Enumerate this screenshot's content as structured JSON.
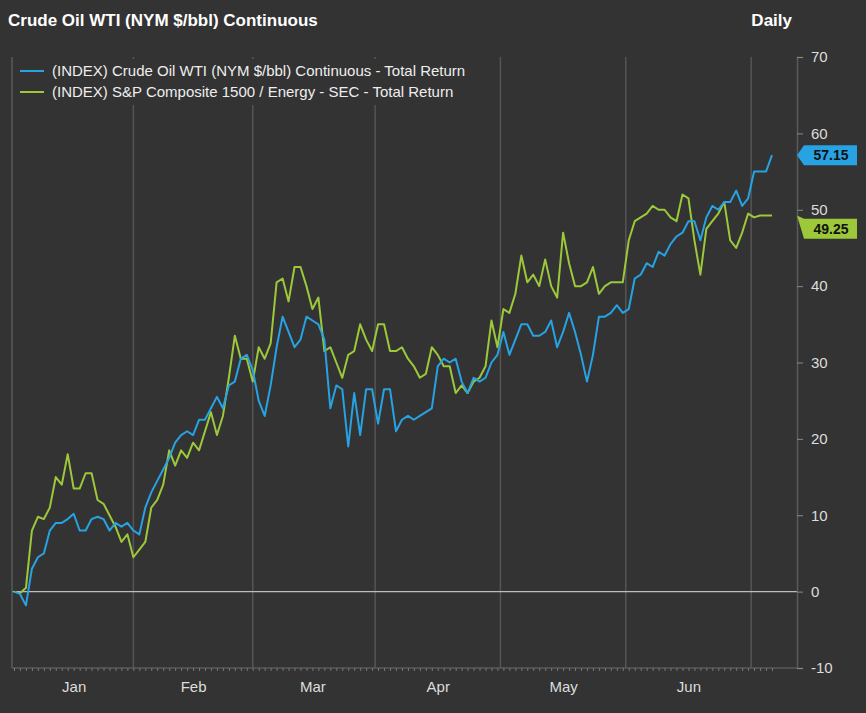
{
  "chart_data": {
    "type": "line",
    "title": "Crude Oil WTI (NYM $/bbl) Continuous",
    "subtitle": "Daily",
    "categories": [
      null,
      null,
      null,
      null,
      null,
      null,
      null,
      null,
      null,
      null,
      "Jan",
      null,
      null,
      null,
      null,
      null,
      null,
      null,
      null,
      null,
      null,
      null,
      null,
      null,
      null,
      null,
      null,
      null,
      null,
      null,
      "Feb",
      null,
      null,
      null,
      null,
      null,
      null,
      null,
      null,
      null,
      null,
      null,
      null,
      null,
      null,
      null,
      null,
      null,
      null,
      null,
      "Mar",
      null,
      null,
      null,
      null,
      null,
      null,
      null,
      null,
      null,
      null,
      null,
      null,
      null,
      null,
      null,
      null,
      null,
      null,
      null,
      null,
      "Apr",
      null,
      null,
      null,
      null,
      null,
      null,
      null,
      null,
      null,
      null,
      null,
      null,
      null,
      null,
      null,
      null,
      null,
      null,
      null,
      null,
      "May",
      null,
      null,
      null,
      null,
      null,
      null,
      null,
      null,
      null,
      null,
      null,
      null,
      null,
      null,
      null,
      null,
      null,
      null,
      null,
      null,
      "Jun",
      null,
      null,
      null,
      null,
      null,
      null,
      null,
      null,
      null,
      null,
      null,
      null,
      null,
      null
    ],
    "series": [
      {
        "name": "(INDEX) Crude Oil WTI (NYM $/bbl) Continuous - Total Return",
        "color": "#27a2e3",
        "values": [
          0,
          -0.3,
          -1.8,
          3,
          4.5,
          5,
          8,
          9,
          9,
          9.5,
          10.2,
          8,
          8,
          9.5,
          9.8,
          9.5,
          8,
          9,
          8.5,
          9,
          8,
          7.5,
          11,
          13,
          14.5,
          16,
          17.5,
          19.5,
          20.5,
          21,
          20.5,
          22.5,
          22.5,
          24,
          25.5,
          24,
          27,
          27.5,
          30.5,
          31,
          29,
          25,
          23,
          27,
          32,
          36,
          34,
          32,
          33,
          36,
          35.5,
          35,
          33,
          24,
          27,
          26.5,
          19,
          26,
          20.5,
          26.5,
          26.5,
          22,
          26.5,
          26.5,
          21,
          22.5,
          23,
          22.5,
          23,
          23.5,
          24,
          29.5,
          30.5,
          30,
          30.5,
          27.5,
          26,
          28,
          27.5,
          28,
          30,
          31,
          34,
          31,
          33,
          35,
          35,
          33.5,
          33.5,
          34,
          35.5,
          32,
          34,
          36.5,
          34,
          31,
          27.5,
          31,
          36,
          36,
          36.5,
          37.5,
          36.5,
          37,
          41,
          41.5,
          43,
          42.5,
          44.5,
          44,
          45.5,
          46.5,
          47,
          48.5,
          48.5,
          46,
          49,
          50.5,
          50,
          51,
          51,
          52.5,
          50.5,
          51.5,
          55,
          55,
          55,
          57.15
        ],
        "value_labels": [
          null,
          null,
          null,
          null,
          null,
          null,
          null,
          null,
          null,
          null,
          null,
          null,
          null,
          null,
          null,
          null,
          null,
          null,
          null,
          null,
          null,
          null,
          null,
          null,
          null,
          null,
          null,
          null,
          null,
          null,
          null,
          null,
          null,
          null,
          null,
          null,
          null,
          null,
          null,
          null,
          null,
          null,
          null,
          null,
          null,
          null,
          null,
          null,
          null,
          null,
          null,
          null,
          null,
          null,
          null,
          null,
          null,
          null,
          null,
          null,
          null,
          null,
          null,
          null,
          null,
          null,
          null,
          null,
          null,
          null,
          null,
          null,
          null,
          null,
          null,
          null,
          null,
          null,
          null,
          null,
          null,
          null,
          null,
          null,
          null,
          null,
          null,
          null,
          null,
          null,
          null,
          null,
          null,
          null,
          null,
          null,
          null,
          null,
          null,
          null,
          null,
          null,
          null,
          null,
          null,
          null,
          null,
          null,
          null,
          null,
          null,
          null,
          null,
          null,
          null,
          null,
          null,
          null,
          null,
          null,
          null,
          null,
          null,
          null,
          null,
          null,
          null,
          "57.15"
        ]
      },
      {
        "name": "(INDEX) S&P Composite 1500 / Energy - SEC - Total Return",
        "color": "#9cc83a",
        "values": [
          0,
          -0.2,
          0.5,
          8,
          9.8,
          9.5,
          11,
          15,
          14,
          18,
          13.5,
          13.5,
          15.5,
          15.5,
          12,
          11.5,
          10,
          8.5,
          6.5,
          7.5,
          4.5,
          5.5,
          6.5,
          11,
          12,
          14,
          18.5,
          16.5,
          18.5,
          17.5,
          19.5,
          18.5,
          21,
          23.5,
          20.5,
          23,
          28,
          33.5,
          30.5,
          30.5,
          27.5,
          32,
          30.5,
          32.5,
          40.5,
          41,
          38,
          42.5,
          42.5,
          40,
          37,
          38.5,
          31.5,
          32,
          30,
          28,
          31,
          31.5,
          35,
          33,
          31.5,
          35,
          35,
          31.5,
          31.5,
          32,
          30.5,
          29.5,
          28,
          28.5,
          32,
          31,
          29.5,
          29.5,
          26,
          27,
          26,
          27.5,
          28,
          29.5,
          35.5,
          32,
          37,
          36.5,
          39,
          44,
          40.5,
          41.5,
          40,
          43.5,
          40,
          38.5,
          47,
          43,
          40,
          40,
          40.5,
          42.5,
          39,
          40,
          40.5,
          40.5,
          40.5,
          46,
          48.5,
          49,
          49.5,
          50.5,
          50,
          50,
          49,
          48.5,
          52,
          51.5,
          46,
          41.5,
          47.5,
          48.5,
          49.5,
          51,
          46,
          45,
          47,
          49.5,
          49,
          49.25,
          49.25,
          49.25
        ],
        "value_labels": [
          null,
          null,
          null,
          null,
          null,
          null,
          null,
          null,
          null,
          null,
          null,
          null,
          null,
          null,
          null,
          null,
          null,
          null,
          null,
          null,
          null,
          null,
          null,
          null,
          null,
          null,
          null,
          null,
          null,
          null,
          null,
          null,
          null,
          null,
          null,
          null,
          null,
          null,
          null,
          null,
          null,
          null,
          null,
          null,
          null,
          null,
          null,
          null,
          null,
          null,
          null,
          null,
          null,
          null,
          null,
          null,
          null,
          null,
          null,
          null,
          null,
          null,
          null,
          null,
          null,
          null,
          null,
          null,
          null,
          null,
          null,
          null,
          null,
          null,
          null,
          null,
          null,
          null,
          null,
          null,
          null,
          null,
          null,
          null,
          null,
          null,
          null,
          null,
          null,
          null,
          null,
          null,
          null,
          null,
          null,
          null,
          null,
          null,
          null,
          null,
          null,
          null,
          null,
          null,
          null,
          null,
          null,
          null,
          null,
          null,
          null,
          null,
          null,
          null,
          null,
          null,
          null,
          null,
          null,
          null,
          null,
          null,
          null,
          null,
          null,
          null,
          null,
          "49.25"
        ]
      }
    ],
    "ylim": [
      -10,
      70
    ],
    "yticks": [
      -10,
      0,
      10,
      20,
      30,
      40,
      50,
      60,
      70
    ],
    "grid": true,
    "legend": "upper left"
  }
}
